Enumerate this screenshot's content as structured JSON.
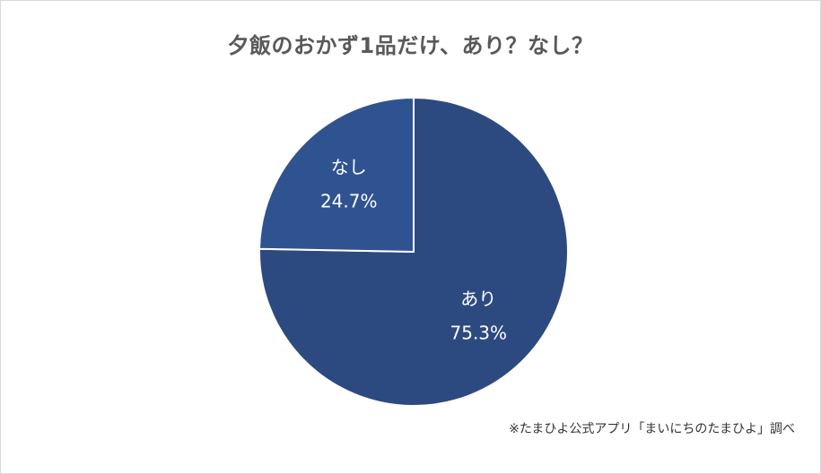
{
  "chart_data": {
    "type": "pie",
    "title": "夕飯のおかず1品だけ、あり？なし？",
    "slices": [
      {
        "label": "あり",
        "value": 75.3,
        "value_label": "75.3%",
        "color": "#2d4a80"
      },
      {
        "label": "なし",
        "value": 24.7,
        "value_label": "24.7%",
        "color": "#2f5291"
      }
    ],
    "start_angle_deg": 0,
    "direction": "clockwise",
    "slice_border_color": "#ffffff",
    "legend": "none"
  },
  "footer": {
    "source": "※たまひよ公式アプリ「まいにちのたまひよ」調べ"
  }
}
